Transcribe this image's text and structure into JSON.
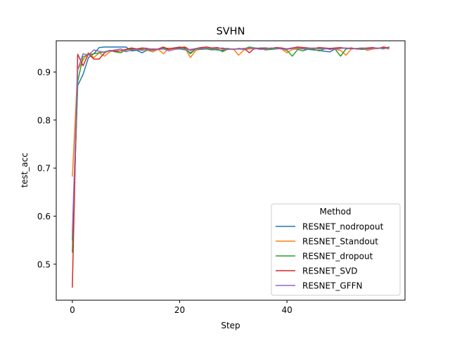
{
  "chart_data": {
    "type": "line",
    "title": "SVHN",
    "xlabel": "Step",
    "ylabel": "test_acc",
    "xlim": [
      -3,
      62
    ],
    "ylim": [
      0.425,
      0.965
    ],
    "xticks": [
      0,
      20,
      40
    ],
    "xtick_labels": [
      "0",
      "20",
      "40"
    ],
    "yticks": [
      0.5,
      0.6,
      0.7,
      0.8,
      0.9
    ],
    "ytick_labels": [
      "0.5",
      "0.6",
      "0.7",
      "0.8",
      "0.9"
    ],
    "grid": false,
    "legend": {
      "title": "Method",
      "placement": "lower-right"
    },
    "series": [
      {
        "name": "RESNET_nodropout",
        "color": "#1f77b4",
        "values": [
          0.55,
          0.872,
          0.895,
          0.93,
          0.938,
          0.951,
          0.952,
          0.952,
          0.952,
          0.952,
          0.952,
          0.944,
          0.945,
          0.94,
          0.946,
          0.945,
          0.948,
          0.95,
          0.949,
          0.95,
          0.952,
          0.948,
          0.94,
          0.948,
          0.95,
          0.948,
          0.947,
          0.946,
          0.945,
          0.947,
          0.948,
          0.948,
          0.947,
          0.949,
          0.948,
          0.95,
          0.95,
          0.948,
          0.95,
          0.949,
          0.948,
          0.95,
          0.949,
          0.948,
          0.947,
          0.946,
          0.945,
          0.943,
          0.942,
          0.948,
          0.949,
          0.95,
          0.948,
          0.949,
          0.95,
          0.949,
          0.948,
          0.949,
          0.95,
          0.951
        ]
      },
      {
        "name": "RESNET_Standout",
        "color": "#ff7f0e",
        "values": [
          0.683,
          0.905,
          0.925,
          0.94,
          0.93,
          0.94,
          0.933,
          0.942,
          0.945,
          0.948,
          0.945,
          0.95,
          0.948,
          0.948,
          0.945,
          0.942,
          0.947,
          0.938,
          0.95,
          0.948,
          0.95,
          0.95,
          0.93,
          0.945,
          0.948,
          0.949,
          0.948,
          0.95,
          0.942,
          0.948,
          0.948,
          0.935,
          0.946,
          0.948,
          0.949,
          0.948,
          0.948,
          0.95,
          0.949,
          0.948,
          0.94,
          0.947,
          0.948,
          0.95,
          0.949,
          0.948,
          0.95,
          0.948,
          0.949,
          0.947,
          0.945,
          0.935,
          0.948,
          0.949,
          0.95,
          0.945,
          0.948,
          0.949,
          0.95,
          0.948
        ]
      },
      {
        "name": "RESNET_dropout",
        "color": "#2ca02c",
        "values": [
          0.525,
          0.88,
          0.932,
          0.936,
          0.938,
          0.94,
          0.942,
          0.945,
          0.942,
          0.94,
          0.946,
          0.948,
          0.945,
          0.947,
          0.946,
          0.948,
          0.947,
          0.95,
          0.947,
          0.95,
          0.949,
          0.95,
          0.938,
          0.948,
          0.947,
          0.948,
          0.946,
          0.947,
          0.943,
          0.948,
          0.947,
          0.949,
          0.948,
          0.952,
          0.95,
          0.949,
          0.946,
          0.947,
          0.948,
          0.949,
          0.945,
          0.933,
          0.947,
          0.944,
          0.948,
          0.947,
          0.944,
          0.948,
          0.949,
          0.947,
          0.933,
          0.948,
          0.949,
          0.948,
          0.947,
          0.948,
          0.949,
          0.95,
          0.948,
          0.952
        ]
      },
      {
        "name": "RESNET_SVD",
        "color": "#d62728",
        "values": [
          0.452,
          0.937,
          0.913,
          0.938,
          0.927,
          0.927,
          0.94,
          0.945,
          0.943,
          0.944,
          0.947,
          0.95,
          0.948,
          0.95,
          0.949,
          0.947,
          0.948,
          0.952,
          0.947,
          0.95,
          0.951,
          0.952,
          0.945,
          0.949,
          0.951,
          0.952,
          0.95,
          0.951,
          0.948,
          0.949,
          0.947,
          0.948,
          0.949,
          0.94,
          0.95,
          0.948,
          0.95,
          0.949,
          0.951,
          0.95,
          0.948,
          0.95,
          0.952,
          0.951,
          0.95,
          0.949,
          0.951,
          0.95,
          0.949,
          0.95,
          0.951,
          0.949,
          0.95,
          0.948,
          0.949,
          0.95,
          0.951,
          0.949,
          0.952,
          0.95
        ]
      },
      {
        "name": "RESNET_GFFN",
        "color": "#9467bd",
        "values": [
          0.565,
          0.905,
          0.938,
          0.935,
          0.946,
          0.943,
          0.941,
          0.944,
          0.946,
          0.948,
          0.942,
          0.946,
          0.947,
          0.945,
          0.948,
          0.946,
          0.947,
          0.948,
          0.944,
          0.947,
          0.948,
          0.946,
          0.947,
          0.949,
          0.948,
          0.95,
          0.948,
          0.949,
          0.95,
          0.948,
          0.947,
          0.949,
          0.948,
          0.95,
          0.949,
          0.947,
          0.948,
          0.95,
          0.949,
          0.948,
          0.947,
          0.949,
          0.95,
          0.948,
          0.949,
          0.95,
          0.948,
          0.949,
          0.947,
          0.948,
          0.949,
          0.95,
          0.948,
          0.949,
          0.95,
          0.948,
          0.949,
          0.95,
          0.949,
          0.95
        ]
      }
    ]
  }
}
